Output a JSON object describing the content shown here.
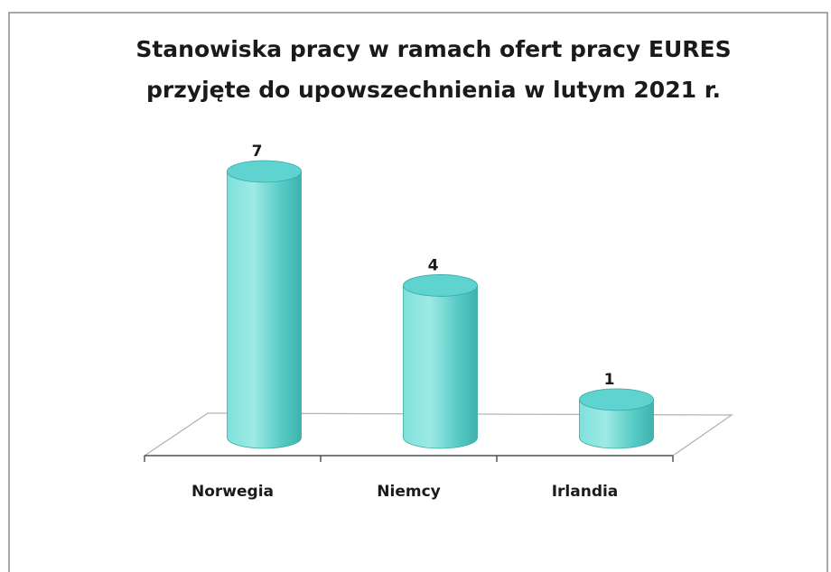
{
  "chart_data": {
    "type": "bar3d-cylinder",
    "title": [
      "Stanowiska pracy w ramach ofert pracy EURES",
      "przyjęte do upowszechnienia w lutym 2021 r."
    ],
    "categories": [
      "Norwegia",
      "Niemcy",
      "Irlandia"
    ],
    "values": [
      7,
      4,
      1
    ],
    "color": "#5fd3cf"
  }
}
